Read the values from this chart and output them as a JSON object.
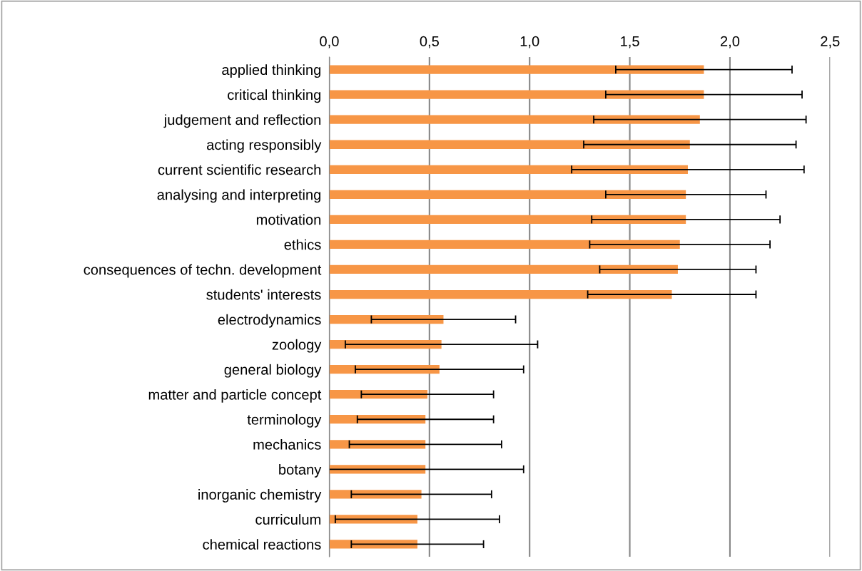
{
  "chart_data": {
    "type": "bar",
    "orientation": "horizontal",
    "color": "#f79646",
    "grid": "x",
    "legend": false,
    "categories": [
      "applied thinking",
      "critical thinking",
      "judgement and reflection",
      "acting responsibly",
      "current scientific research",
      "analysing and interpreting",
      "motivation",
      "ethics",
      "consequences of techn. development",
      "students' interests",
      "electrodynamics",
      "zoology",
      "general biology",
      "matter and particle concept",
      "terminology",
      "mechanics",
      "botany",
      "inorganic chemistry",
      "curriculum",
      "chemical reactions"
    ],
    "values": [
      1.87,
      1.87,
      1.85,
      1.8,
      1.79,
      1.78,
      1.78,
      1.75,
      1.74,
      1.71,
      0.57,
      0.56,
      0.55,
      0.49,
      0.48,
      0.48,
      0.48,
      0.46,
      0.44,
      0.44
    ],
    "errors": [
      0.44,
      0.49,
      0.53,
      0.53,
      0.58,
      0.4,
      0.47,
      0.45,
      0.39,
      0.42,
      0.36,
      0.48,
      0.42,
      0.33,
      0.34,
      0.38,
      0.49,
      0.35,
      0.41,
      0.33
    ],
    "xlim": [
      0,
      2.5
    ],
    "xticks": [
      {
        "value": 0,
        "label": "0,0"
      },
      {
        "value": 0.5,
        "label": "0,5"
      },
      {
        "value": 1,
        "label": "1,0"
      },
      {
        "value": 1.5,
        "label": "1,5"
      },
      {
        "value": 2,
        "label": "2,0"
      },
      {
        "value": 2.5,
        "label": "2,5"
      }
    ]
  }
}
